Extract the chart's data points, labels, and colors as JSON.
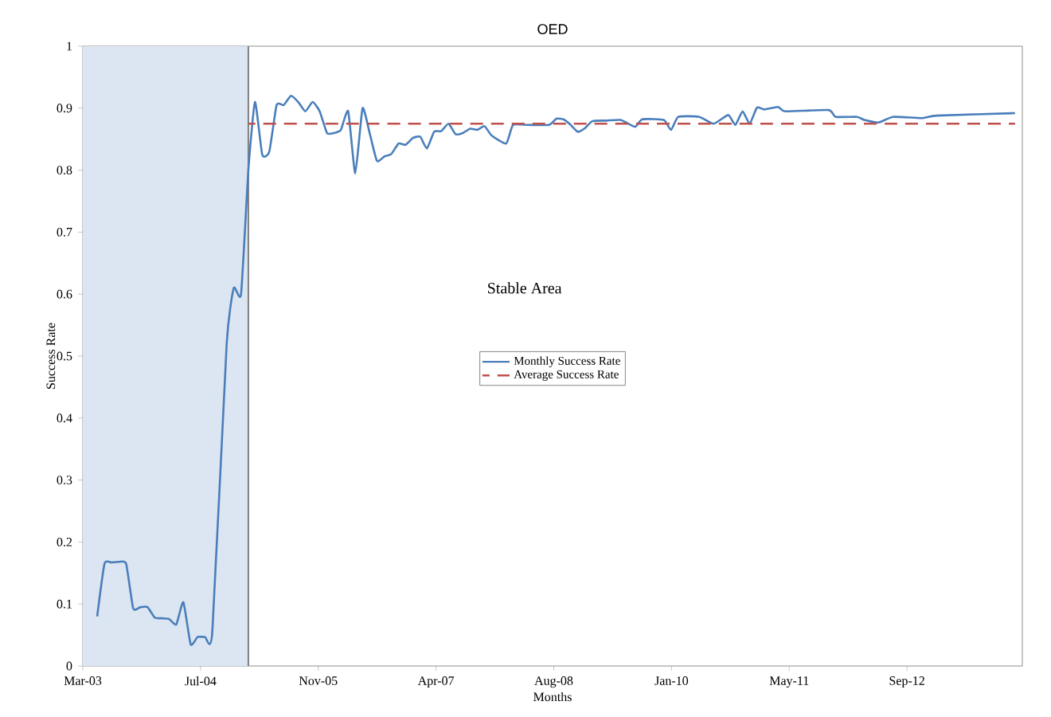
{
  "chart_data": {
    "type": "line",
    "title": "OED",
    "xlabel": "Months",
    "ylabel": "Success Rate",
    "xlim": [
      "2003-03-01",
      "2014-02-01"
    ],
    "xticks": [
      {
        "value": "2003-03-01",
        "label": "Mar-03"
      },
      {
        "value": "2004-07-13",
        "label": "Jul-04"
      },
      {
        "value": "2005-11-25",
        "label": "Nov-05"
      },
      {
        "value": "2007-04-09",
        "label": "Apr-07"
      },
      {
        "value": "2008-08-21",
        "label": "Aug-08"
      },
      {
        "value": "2010-01-03",
        "label": "Jan-10"
      },
      {
        "value": "2011-05-18",
        "label": "May-11"
      },
      {
        "value": "2012-09-29",
        "label": "Sep-12"
      }
    ],
    "ylim": [
      0,
      1
    ],
    "yticks": [
      0,
      0.1,
      0.2,
      0.3,
      0.4,
      0.5,
      0.6,
      0.7,
      0.8,
      0.9,
      1
    ],
    "series": [
      {
        "name": "Monthly Success Rate",
        "color": "#4a7ebb",
        "line_style": "solid",
        "x": [
          "2003-05",
          "2003-06",
          "2003-07",
          "2003-08",
          "2003-09",
          "2003-10",
          "2003-11",
          "2003-12",
          "2004-01",
          "2004-02",
          "2004-03",
          "2004-04",
          "2004-05",
          "2004-06",
          "2004-07",
          "2004-08",
          "2004-09",
          "2004-11",
          "2004-12",
          "2005-01",
          "2005-02",
          "2005-03",
          "2005-04",
          "2005-05",
          "2005-06",
          "2005-07",
          "2005-08",
          "2005-09",
          "2005-10",
          "2005-11",
          "2005-12",
          "2006-01",
          "2006-02",
          "2006-03",
          "2006-04",
          "2006-05",
          "2006-06",
          "2006-07",
          "2006-08",
          "2006-09",
          "2006-10",
          "2006-11",
          "2006-12",
          "2007-01",
          "2007-02",
          "2007-03",
          "2007-04",
          "2007-05",
          "2007-06",
          "2007-07",
          "2007-08",
          "2007-09",
          "2007-10",
          "2007-11",
          "2007-12",
          "2008-02",
          "2008-03",
          "2008-05",
          "2008-08",
          "2008-09",
          "2008-10",
          "2008-11",
          "2008-12",
          "2009-01",
          "2009-02",
          "2009-04",
          "2009-06",
          "2009-08",
          "2009-09",
          "2009-12",
          "2010-01",
          "2010-02",
          "2010-05",
          "2010-07",
          "2010-09",
          "2010-10",
          "2010-11",
          "2010-12",
          "2011-01",
          "2011-02",
          "2011-04",
          "2011-05",
          "2011-11",
          "2011-12",
          "2012-03",
          "2012-04",
          "2012-06",
          "2012-08",
          "2012-12",
          "2013-02",
          "2014-01"
        ],
        "values": [
          0.08,
          0.165,
          0.167,
          0.168,
          0.165,
          0.093,
          0.095,
          0.095,
          0.078,
          0.077,
          0.076,
          0.067,
          0.103,
          0.035,
          0.047,
          0.047,
          0.055,
          0.52,
          0.61,
          0.6,
          0.8,
          0.91,
          0.825,
          0.83,
          0.905,
          0.905,
          0.92,
          0.91,
          0.895,
          0.91,
          0.895,
          0.86,
          0.86,
          0.865,
          0.895,
          0.795,
          0.9,
          0.86,
          0.815,
          0.822,
          0.826,
          0.843,
          0.841,
          0.852,
          0.854,
          0.835,
          0.862,
          0.863,
          0.875,
          0.858,
          0.86,
          0.867,
          0.865,
          0.871,
          0.856,
          0.843,
          0.873,
          0.873,
          0.873,
          0.883,
          0.882,
          0.873,
          0.862,
          0.868,
          0.879,
          0.88,
          0.881,
          0.87,
          0.882,
          0.881,
          0.865,
          0.886,
          0.886,
          0.875,
          0.889,
          0.873,
          0.895,
          0.875,
          0.901,
          0.898,
          0.902,
          0.895,
          0.897,
          0.886,
          0.886,
          0.881,
          0.877,
          0.886,
          0.884,
          0.888,
          0.892
        ]
      },
      {
        "name": "Average Success Rate",
        "color": "#c0504d",
        "line_style": "dashed",
        "x": [
          "2005-02",
          "2014-01"
        ],
        "values": [
          0.875,
          0.875
        ]
      }
    ],
    "bands": [
      {
        "axis": "x",
        "from": "2003-03-01",
        "to": "2005-02",
        "color": "#dce6f2"
      }
    ],
    "ref_lines": [
      {
        "axis": "x",
        "value": "2005-02",
        "color": "#7f7f7f"
      }
    ],
    "annotations": [
      "Stable Area"
    ],
    "legend": "center"
  }
}
